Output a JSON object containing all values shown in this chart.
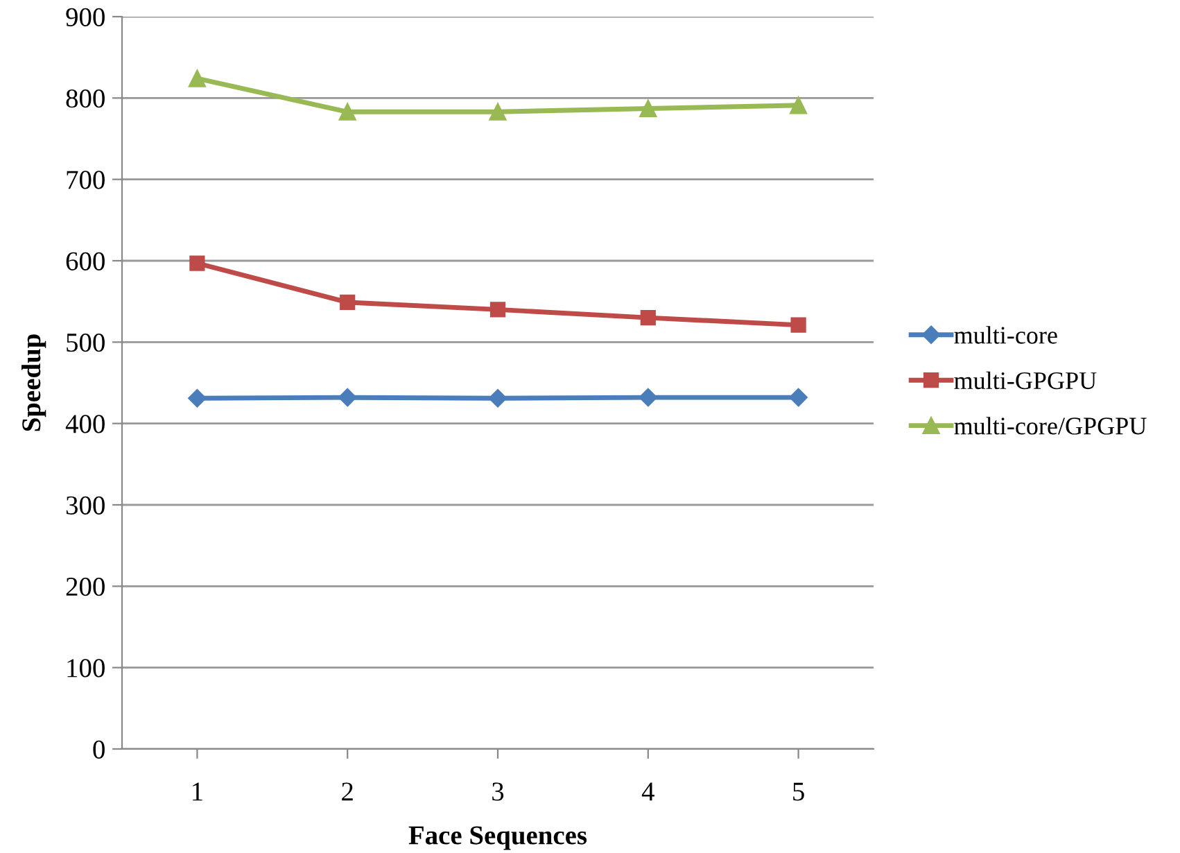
{
  "chart_data": {
    "type": "line",
    "xlabel": "Face Sequences",
    "ylabel": "Speedup",
    "categories": [
      "1",
      "2",
      "3",
      "4",
      "5"
    ],
    "series": [
      {
        "name": "multi-core",
        "color": "#4a7ebb",
        "marker": "diamond",
        "values": [
          431,
          432,
          431,
          432,
          432
        ]
      },
      {
        "name": "multi-GPGPU",
        "color": "#be4b48",
        "marker": "square",
        "values": [
          597,
          549,
          540,
          530,
          521
        ]
      },
      {
        "name": "multi-core/GPGPU",
        "color": "#98b954",
        "marker": "triangle",
        "values": [
          824,
          783,
          783,
          787,
          791
        ]
      }
    ],
    "ylim": [
      0,
      900
    ],
    "yticks": [
      0,
      100,
      200,
      300,
      400,
      500,
      600,
      700,
      800,
      900
    ],
    "grid": "y",
    "legend": "right",
    "line_style": "solid"
  }
}
